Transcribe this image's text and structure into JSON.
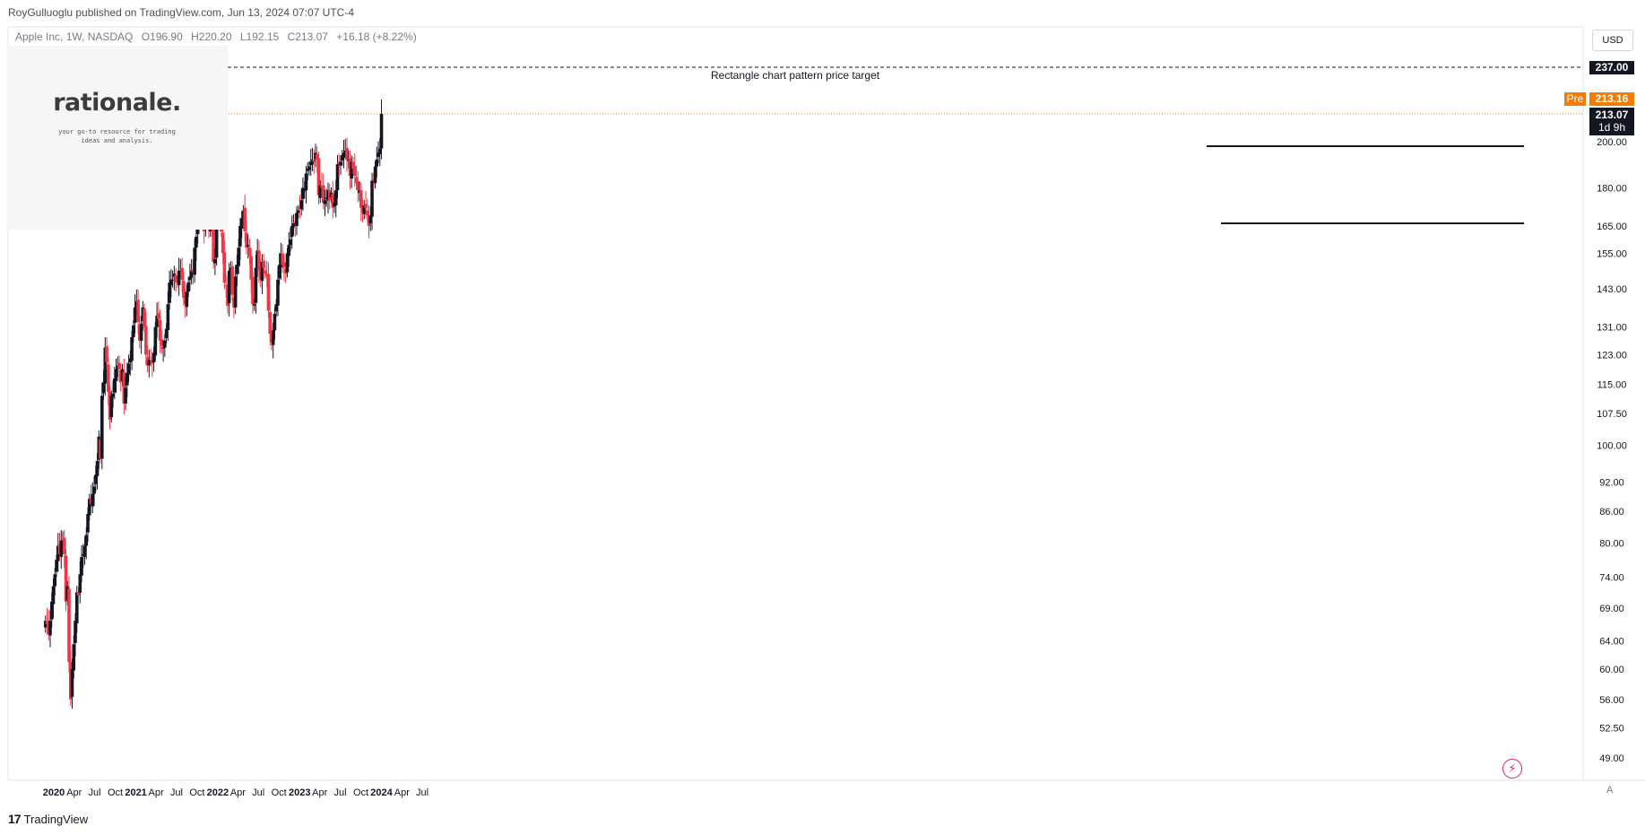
{
  "header": {
    "publisher_line": "RoyGulluoglu published on TradingView.com, Jun 13, 2024 07:07 UTC-4",
    "symbol_line": "Apple Inc, 1W, NASDAQ",
    "open": "O196.90",
    "high": "H220.20",
    "low": "L192.15",
    "close": "C213.07",
    "change": "+16.18 (+8.22%)"
  },
  "watermark": {
    "word": "rationale.",
    "tagline": "your go-to resource for trading ideas and analysis."
  },
  "annotation": {
    "target_label": "Rectangle chart pattern price target"
  },
  "price_axis": {
    "currency": "USD",
    "target_tag": "237.00",
    "pre_label": "Pre",
    "pre_price": "213.16",
    "last_price": "213.07",
    "countdown": "1d 9h"
  },
  "footer": {
    "brand_mark": "17",
    "brand": "TradingView",
    "auto_label": "A"
  },
  "colors": {
    "up": "#131722",
    "down": "#f23645",
    "premarket": "#f57c00",
    "grid_border": "#e0e3eb"
  },
  "chart_data": {
    "type": "candlestick",
    "scale": "log",
    "timeframe": "1W",
    "y_ticks": [
      49.0,
      52.5,
      56.0,
      60.0,
      64.0,
      69.0,
      74.0,
      80.0,
      86.0,
      92.0,
      100.0,
      107.5,
      115.0,
      123.0,
      131.0,
      143.0,
      155.0,
      165.0,
      180.0,
      200.0
    ],
    "y_tick_labels": [
      "49.00",
      "52.50",
      "56.00",
      "60.00",
      "64.00",
      "69.00",
      "74.00",
      "80.00",
      "86.00",
      "92.00",
      "100.00",
      "107.50",
      "115.00",
      "123.00",
      "131.00",
      "143.00",
      "155.00",
      "165.00",
      "180.00",
      "200.00"
    ],
    "x_ticks": [
      {
        "label": "2020",
        "date": "2020-01-01",
        "bold": true
      },
      {
        "label": "Apr",
        "date": "2020-04-01"
      },
      {
        "label": "Jul",
        "date": "2020-07-01"
      },
      {
        "label": "Oct",
        "date": "2020-10-01"
      },
      {
        "label": "2021",
        "date": "2021-01-01",
        "bold": true
      },
      {
        "label": "Apr",
        "date": "2021-04-01"
      },
      {
        "label": "Jul",
        "date": "2021-07-01"
      },
      {
        "label": "Oct",
        "date": "2021-10-01"
      },
      {
        "label": "2022",
        "date": "2022-01-01",
        "bold": true
      },
      {
        "label": "Apr",
        "date": "2022-04-01"
      },
      {
        "label": "Jul",
        "date": "2022-07-01"
      },
      {
        "label": "Oct",
        "date": "2022-10-01"
      },
      {
        "label": "2023",
        "date": "2023-01-01",
        "bold": true
      },
      {
        "label": "Apr",
        "date": "2023-04-01"
      },
      {
        "label": "Jul",
        "date": "2023-07-01"
      },
      {
        "label": "Oct",
        "date": "2023-10-01"
      },
      {
        "label": "2024",
        "date": "2024-01-01",
        "bold": true
      },
      {
        "label": "Apr",
        "date": "2024-04-01"
      },
      {
        "label": "Jul",
        "date": "2024-07-01"
      }
    ],
    "first_week": "2019-11-25",
    "closes": [
      67,
      66.5,
      65,
      67,
      70,
      72.5,
      74.5,
      77,
      79.5,
      78,
      80.5,
      80.5,
      78,
      70,
      72.5,
      61,
      56,
      60,
      63.5,
      67,
      71.5,
      71,
      74.5,
      77.5,
      78,
      79.5,
      81.5,
      85.5,
      88.5,
      87.5,
      89.5,
      91,
      93.5,
      96.5,
      102,
      97,
      112,
      115.5,
      125,
      121,
      113,
      106,
      112,
      112.5,
      116.5,
      119,
      120,
      119,
      115.5,
      119,
      110,
      114,
      118,
      120.5,
      122,
      128,
      131.5,
      137,
      139,
      132.5,
      127,
      132,
      137,
      131,
      123,
      120,
      121.5,
      122,
      120.5,
      123.5,
      131,
      134.5,
      133.5,
      127,
      125.5,
      125,
      127,
      130.5,
      138,
      145,
      146,
      146,
      148,
      145,
      145,
      149,
      149,
      146,
      140,
      138,
      142,
      145,
      147,
      149,
      148.5,
      157,
      161,
      175,
      172,
      172,
      168,
      163,
      172,
      173,
      164,
      169,
      165,
      152,
      153,
      172,
      175,
      171,
      163,
      155,
      145,
      144,
      137.5,
      149,
      150,
      141,
      137,
      147,
      151,
      157,
      165,
      168,
      171,
      163,
      157,
      158,
      154,
      146,
      138,
      138,
      150,
      156,
      149,
      146,
      152,
      150,
      148,
      147,
      136,
      129,
      126.5,
      130,
      135,
      138,
      146,
      151,
      155,
      151,
      150,
      148,
      155,
      158,
      160,
      165,
      166,
      166,
      170,
      171,
      172,
      175,
      180,
      179,
      186,
      188,
      189,
      191,
      192,
      191,
      195,
      192,
      177,
      181,
      180,
      174,
      175,
      176,
      179,
      175,
      178,
      172,
      174,
      179,
      190,
      190,
      191,
      194,
      195,
      196,
      192,
      192,
      185,
      191,
      188,
      185,
      182,
      179,
      179,
      172,
      170,
      173,
      172,
      169,
      165,
      169,
      183,
      183,
      189,
      192,
      195,
      196.9,
      213.07
    ]
  }
}
